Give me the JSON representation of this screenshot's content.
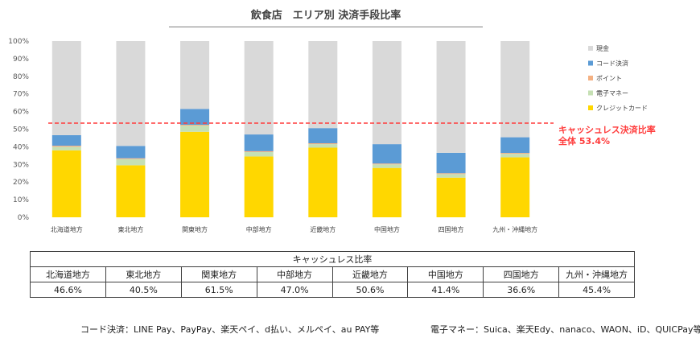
{
  "title": "飲食店　エリア別 決済手段比率",
  "chart_data": {
    "type": "bar",
    "stacked": true,
    "categories": [
      "北海道地方",
      "東北地方",
      "関東地方",
      "中部地方",
      "近畿地方",
      "中国地方",
      "四国地方",
      "九州・沖縄地方"
    ],
    "ylim": [
      0,
      100
    ],
    "yticks": [
      "0%",
      "10%",
      "20%",
      "30%",
      "40%",
      "50%",
      "60%",
      "70%",
      "80%",
      "90%",
      "100%"
    ],
    "series": [
      {
        "name": "クレジットカード",
        "color": "#ffd700",
        "values": [
          38.0,
          29.5,
          48.5,
          34.5,
          39.5,
          28.0,
          22.5,
          34.0
        ]
      },
      {
        "name": "電子マネー",
        "color": "#c6e0b4",
        "values": [
          2.0,
          3.5,
          3.5,
          2.5,
          2.0,
          2.0,
          2.0,
          2.0
        ]
      },
      {
        "name": "ポイント",
        "color": "#f4b183",
        "values": [
          0.6,
          0.5,
          0.5,
          0.5,
          0.5,
          0.5,
          0.5,
          0.5
        ]
      },
      {
        "name": "コード決済",
        "color": "#5b9bd5",
        "values": [
          6.0,
          7.0,
          9.0,
          9.5,
          8.6,
          11.0,
          11.6,
          8.9
        ]
      },
      {
        "name": "現金",
        "color": "#d9d9d9",
        "values": [
          53.4,
          59.5,
          38.5,
          53.0,
          49.4,
          58.5,
          63.4,
          54.6
        ]
      }
    ],
    "legend_order": [
      "現金",
      "コード決済",
      "ポイント",
      "電子マネー",
      "クレジットカード"
    ],
    "legend_position": "right",
    "reference_line": {
      "value": 53.4,
      "color": "#ff3b3b",
      "label_line1": "キャッシュレス決済比率",
      "label_line2": "全体 53.4%"
    }
  },
  "table": {
    "caption": "キャッシュレス比率",
    "headers": [
      "北海道地方",
      "東北地方",
      "関東地方",
      "中部地方",
      "近畿地方",
      "中国地方",
      "四国地方",
      "九州・沖縄地方"
    ],
    "values": [
      "46.6%",
      "40.5%",
      "61.5%",
      "47.0%",
      "50.6%",
      "41.4%",
      "36.6%",
      "45.4%"
    ]
  },
  "footnotes": {
    "code": "コード決済：LINE Pay、PayPay、楽天ペイ、d払い、メルペイ、au PAY等",
    "emoney": "電子マネー：Suica、楽天Edy、nanaco、WAON、iD、QUICPay等"
  }
}
